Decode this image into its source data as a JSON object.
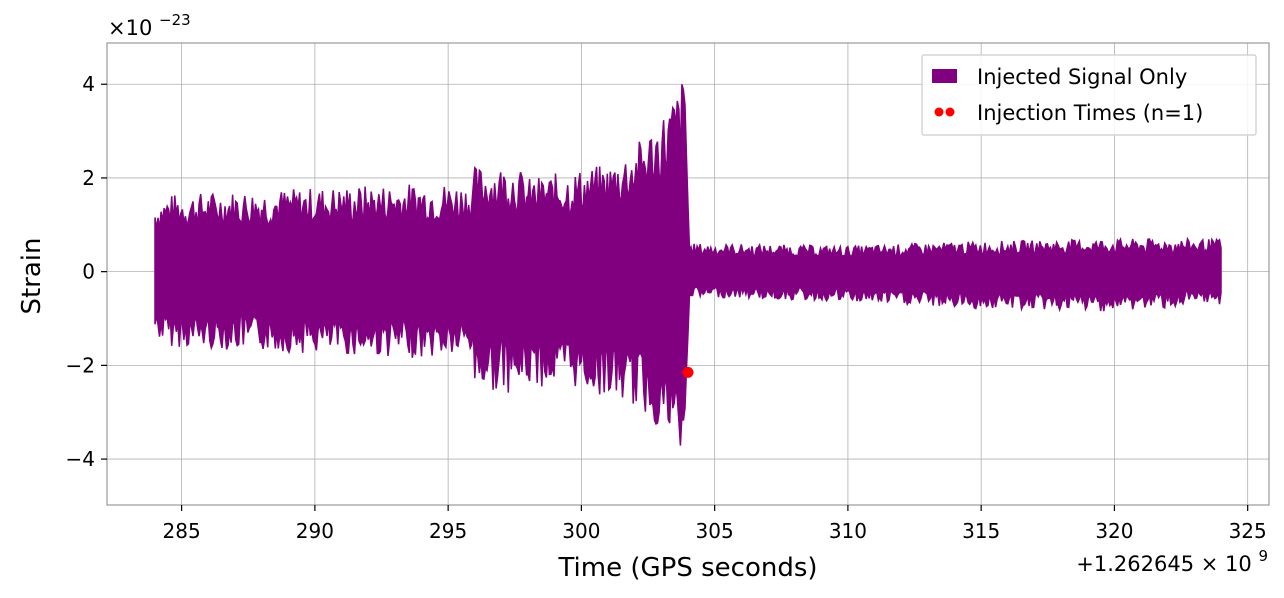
{
  "chart_data": {
    "type": "line",
    "xlabel": "Time (GPS seconds)",
    "ylabel": "Strain",
    "x_offset_label": "+1.262645",
    "x_offset_exponent": "9",
    "y_multiplier_label": "×10",
    "y_multiplier_exponent": "−23",
    "xlim": [
      282.2,
      325.8
    ],
    "ylim": [
      -4.98,
      4.88
    ],
    "x_ticks": [
      285,
      290,
      295,
      300,
      305,
      310,
      315,
      320,
      325
    ],
    "x_tick_labels": [
      "285",
      "290",
      "295",
      "300",
      "305",
      "310",
      "315",
      "320",
      "325"
    ],
    "y_ticks": [
      -4,
      -2,
      0,
      2,
      4
    ],
    "y_tick_labels": [
      "−4",
      "−2",
      "0",
      "2",
      "4"
    ],
    "grid": true,
    "legend_position": "top-right",
    "series": [
      {
        "name": "Injected Signal Only",
        "kind": "filled-oscillation",
        "color": "#800080",
        "envelope": {
          "x": [
            284.0,
            284.5,
            286.0,
            288.0,
            290.0,
            292.0,
            294.0,
            295.9,
            296.0,
            297.5,
            298.0,
            300.0,
            301.0,
            302.0,
            302.8,
            303.5,
            303.9,
            304.05,
            304.3,
            305.0,
            310.0,
            315.0,
            320.0,
            324.0
          ],
          "upper": [
            1.5,
            1.65,
            1.7,
            1.75,
            1.8,
            1.85,
            1.9,
            1.9,
            2.25,
            2.3,
            2.0,
            2.2,
            2.3,
            2.7,
            3.2,
            3.8,
            4.3,
            0.6,
            0.6,
            0.6,
            0.55,
            0.65,
            0.7,
            0.7
          ],
          "lower": [
            -1.4,
            -1.6,
            -1.65,
            -1.7,
            -1.75,
            -1.8,
            -1.85,
            -1.8,
            -2.5,
            -2.6,
            -2.45,
            -2.5,
            -2.7,
            -2.9,
            -3.3,
            -3.8,
            -4.4,
            -0.5,
            -0.6,
            -0.55,
            -0.65,
            -0.8,
            -0.85,
            -0.7
          ]
        }
      },
      {
        "name": "Injection Times (n=1)",
        "kind": "markers",
        "color": "#ff0000",
        "x": [
          304.0
        ],
        "y": [
          -2.15
        ]
      }
    ]
  }
}
